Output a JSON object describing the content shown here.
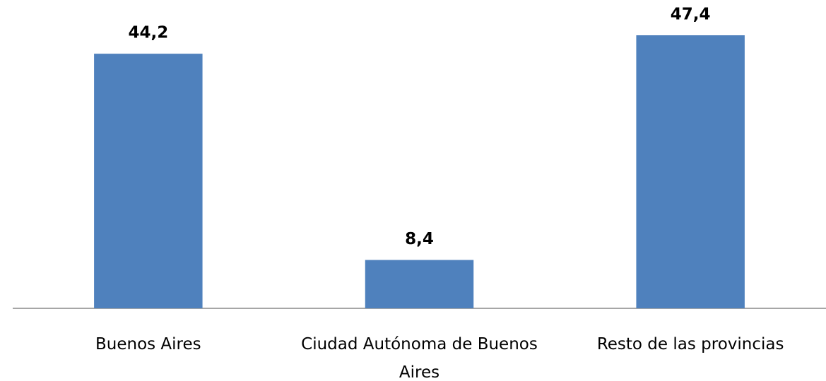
{
  "chart_data": {
    "type": "bar",
    "categories": [
      "Buenos Aires",
      "Ciudad Autónoma de Buenos Aires",
      "Resto de las provincias"
    ],
    "values": [
      44.2,
      8.4,
      47.4
    ],
    "value_labels": [
      "44,2",
      "8,4",
      "47,4"
    ],
    "color": "#4f81bd"
  }
}
